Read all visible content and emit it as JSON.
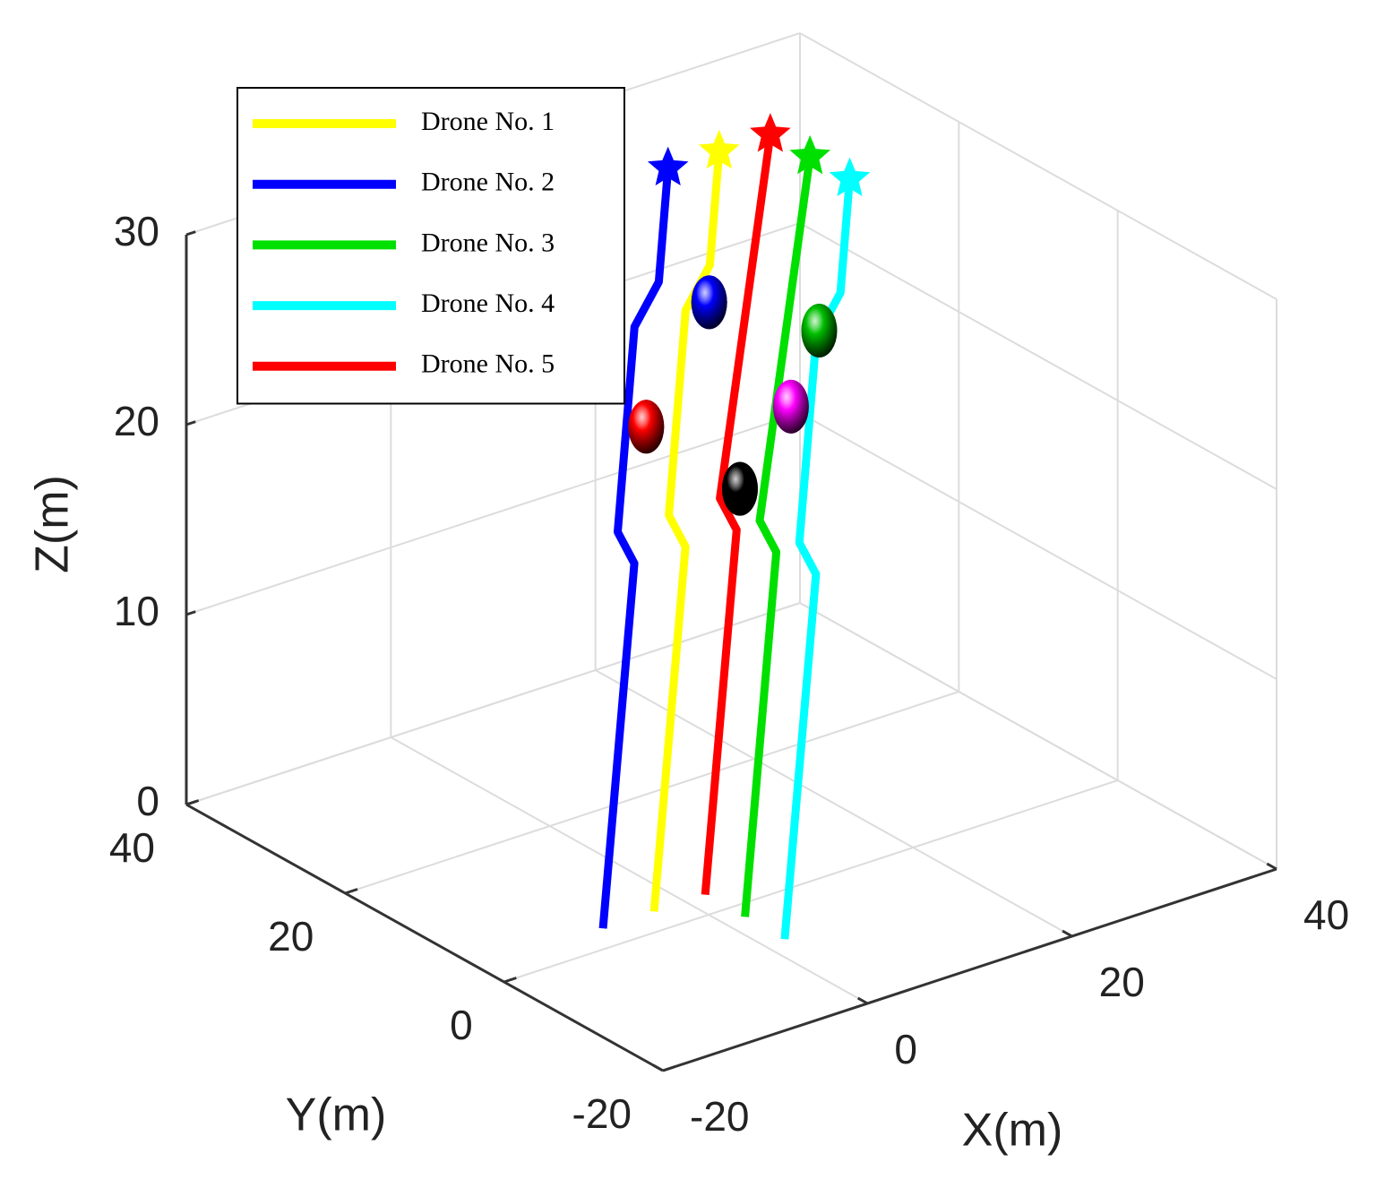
{
  "chart_data": {
    "type": "line3d",
    "xlabel": "X(m)",
    "ylabel": "Y(m)",
    "zlabel": "Z(m)",
    "xlim": [
      -20,
      40
    ],
    "ylim": [
      -20,
      40
    ],
    "zlim": [
      0,
      30
    ],
    "xticks": [
      -20,
      0,
      20,
      40
    ],
    "yticks": [
      -20,
      0,
      20,
      40
    ],
    "zticks": [
      0,
      10,
      20,
      30
    ],
    "grid": true,
    "legend": "upper left",
    "series": [
      {
        "name": "Drone No. 1",
        "color": "#ffff00",
        "x": [
          -3,
          9,
          8.3,
          15,
          18.3,
          22
        ],
        "y": [
          3,
          14.5,
          15.7,
          22.2,
          23.4,
          27
        ],
        "z": [
          0,
          14.4,
          15.9,
          24,
          25.5,
          30
        ]
      },
      {
        "name": "Drone No. 2",
        "color": "#0000ff",
        "x": [
          -8,
          4,
          3.3,
          10,
          13.3,
          17
        ],
        "y": [
          3,
          14.5,
          15.7,
          22.2,
          23.4,
          27
        ],
        "z": [
          0,
          14.4,
          15.9,
          24,
          25.5,
          30
        ]
      },
      {
        "name": "Drone No. 3",
        "color": "#00e000",
        "x": [
          2,
          14,
          13.3,
          27
        ],
        "y": [
          -2,
          9.5,
          10.7,
          22
        ],
        "z": [
          0,
          14.4,
          15.9,
          30
        ]
      },
      {
        "name": "Drone No. 4",
        "color": "#00ffff",
        "x": [
          2,
          14,
          13.3,
          20,
          23.3,
          27
        ],
        "y": [
          -7,
          4.5,
          5.7,
          12.2,
          13.4,
          17
        ],
        "z": [
          0,
          14.4,
          15.9,
          24,
          25.5,
          30
        ]
      },
      {
        "name": "Drone No. 5",
        "color": "#ff0000",
        "x": [
          2,
          14,
          13.3,
          27
        ],
        "y": [
          3,
          14.5,
          15.7,
          27
        ],
        "z": [
          0,
          14.4,
          15.9,
          30
        ]
      }
    ],
    "obstacles": [
      {
        "color": "#ff0000",
        "x": 8.5,
        "y": 18.8,
        "z": 19.8
      },
      {
        "color": "#0000ff",
        "x": 17.3,
        "y": 22.2,
        "z": 24
      },
      {
        "color": "#000000",
        "x": 15.8,
        "y": 16.4,
        "z": 15.8
      },
      {
        "color": "#ff00ff",
        "x": 19,
        "y": 14.1,
        "z": 20.1
      },
      {
        "color": "#00c000",
        "x": 19.9,
        "y": 11.7,
        "z": 24.5
      }
    ]
  }
}
